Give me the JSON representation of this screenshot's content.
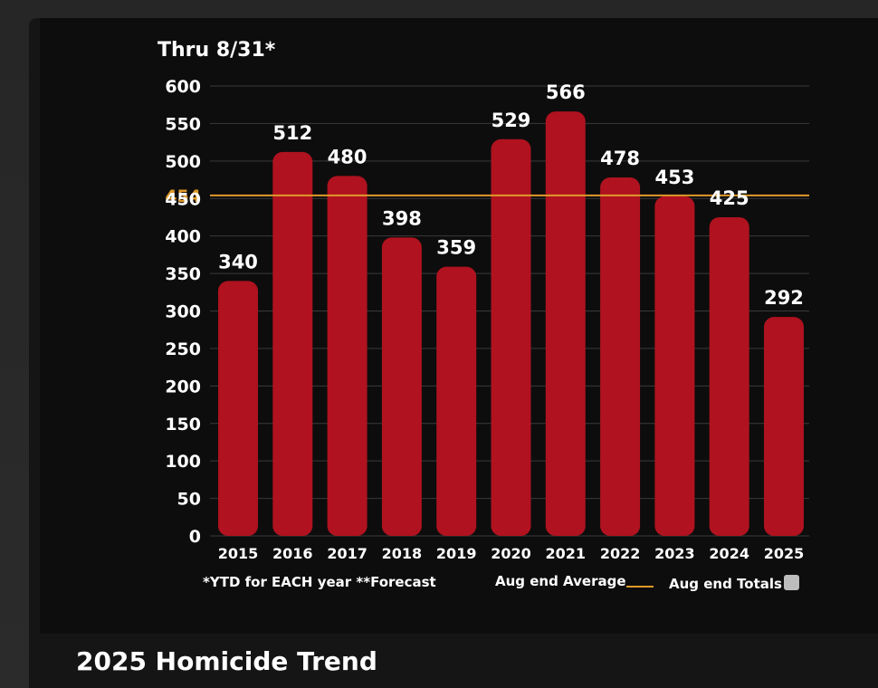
{
  "chart_data": {
    "type": "bar",
    "title": "Thru 8/31*",
    "categories": [
      "2015",
      "2016",
      "2017",
      "2018",
      "2019",
      "2020",
      "2021",
      "2022",
      "2023",
      "2024",
      "2025"
    ],
    "values": [
      340,
      512,
      480,
      398,
      359,
      529,
      566,
      478,
      453,
      425,
      292
    ],
    "ylim": [
      0,
      600
    ],
    "yticks": [
      0,
      50,
      100,
      150,
      200,
      250,
      300,
      350,
      400,
      450,
      500,
      550,
      600
    ],
    "reference_line": {
      "value": 454,
      "label": "454",
      "color": "#e09a2a"
    },
    "bar_color": "#b0121f",
    "grid": true,
    "footnote": "*YTD for EACH year **Forecast",
    "legend": [
      {
        "label": "Aug end Average",
        "marker": "line",
        "color": "#e09a2a"
      },
      {
        "label": "Aug end Totals",
        "marker": "square",
        "color": "#bdbdbd"
      }
    ],
    "legend_position": "bottom-right"
  },
  "caption": "2025 Homicide Trend"
}
